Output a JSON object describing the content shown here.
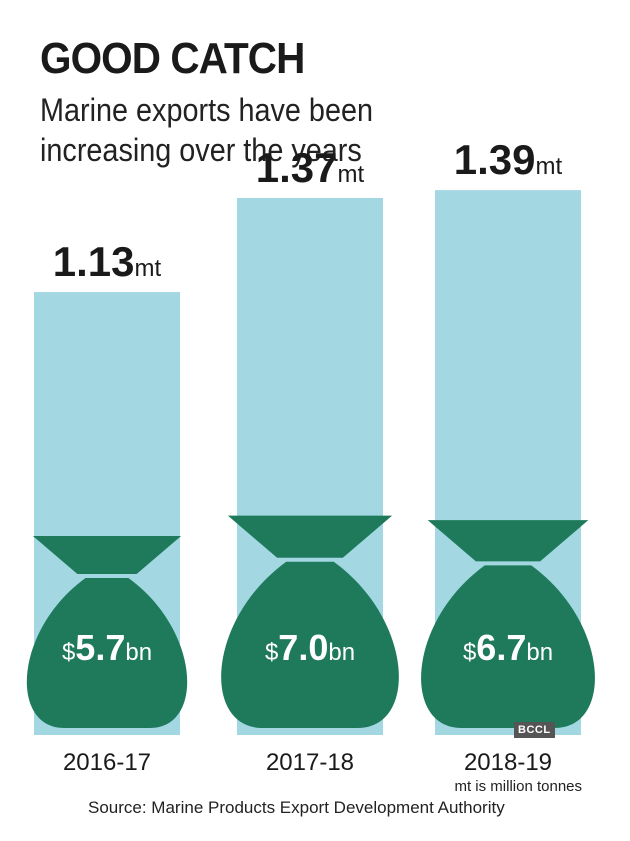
{
  "title": "GOOD CATCH",
  "subtitle": "Marine exports have been increasing over the years",
  "colors": {
    "bar": "#a3d8e3",
    "bag": "#1f7a5c",
    "text": "#1a1a1a"
  },
  "chart_data": {
    "type": "bar",
    "categories": [
      "2016-17",
      "2017-18",
      "2018-19"
    ],
    "series": [
      {
        "values": [
          1.13,
          1.37,
          1.39
        ]
      },
      {
        "values": [
          5.7,
          7.0,
          6.7
        ]
      }
    ],
    "volume_labels": [
      {
        "number": "1.13",
        "unit": "mt"
      },
      {
        "number": "1.37",
        "unit": "mt"
      },
      {
        "number": "1.39",
        "unit": "mt"
      }
    ],
    "value_labels": [
      {
        "currency": "$",
        "number": "5.7",
        "unit": "bn"
      },
      {
        "currency": "$",
        "number": "7.0",
        "unit": "bn"
      },
      {
        "currency": "$",
        "number": "6.7",
        "unit": "bn"
      }
    ]
  },
  "note": "mt is million tonnes",
  "source": "Source: Marine Products Export Development Authority",
  "badge": "BCCL"
}
